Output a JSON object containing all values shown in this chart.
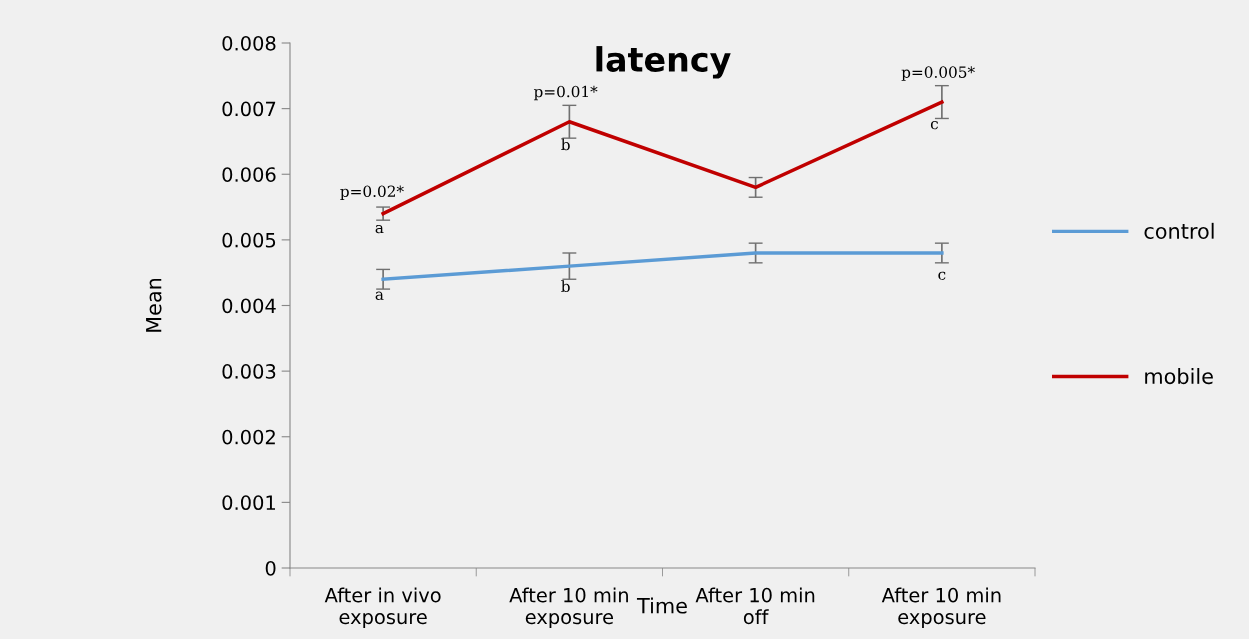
{
  "chart_data": {
    "type": "line",
    "title": "latency",
    "xlabel": "Time",
    "ylabel": "Mean",
    "categories": [
      "After in vivo\nexposure",
      "After 10 min\nexposure",
      "After 10 min\noff",
      "After 10 min\nexposure"
    ],
    "series": [
      {
        "name": "control",
        "color": "#5b9bd5",
        "values": [
          0.0044,
          0.0046,
          0.0048,
          0.0048
        ],
        "errors": [
          0.00015,
          0.0002,
          0.00015,
          0.00015
        ]
      },
      {
        "name": "mobile",
        "color": "#c00000",
        "values": [
          0.0054,
          0.0068,
          0.0058,
          0.0071
        ],
        "errors": [
          0.0001,
          0.00025,
          0.00015,
          0.00025
        ]
      }
    ],
    "ylim": [
      0,
      0.008
    ],
    "yticks": [
      0,
      0.001,
      0.002,
      0.003,
      0.004,
      0.005,
      0.006,
      0.007,
      0.008
    ],
    "grid": false,
    "legend": "right",
    "marker": "none",
    "line_style": "solid",
    "annotations": [
      "p=0.02*",
      "p=0.01*",
      "p=0.005*",
      "a",
      "b",
      "c",
      "a",
      "b",
      "c"
    ]
  }
}
